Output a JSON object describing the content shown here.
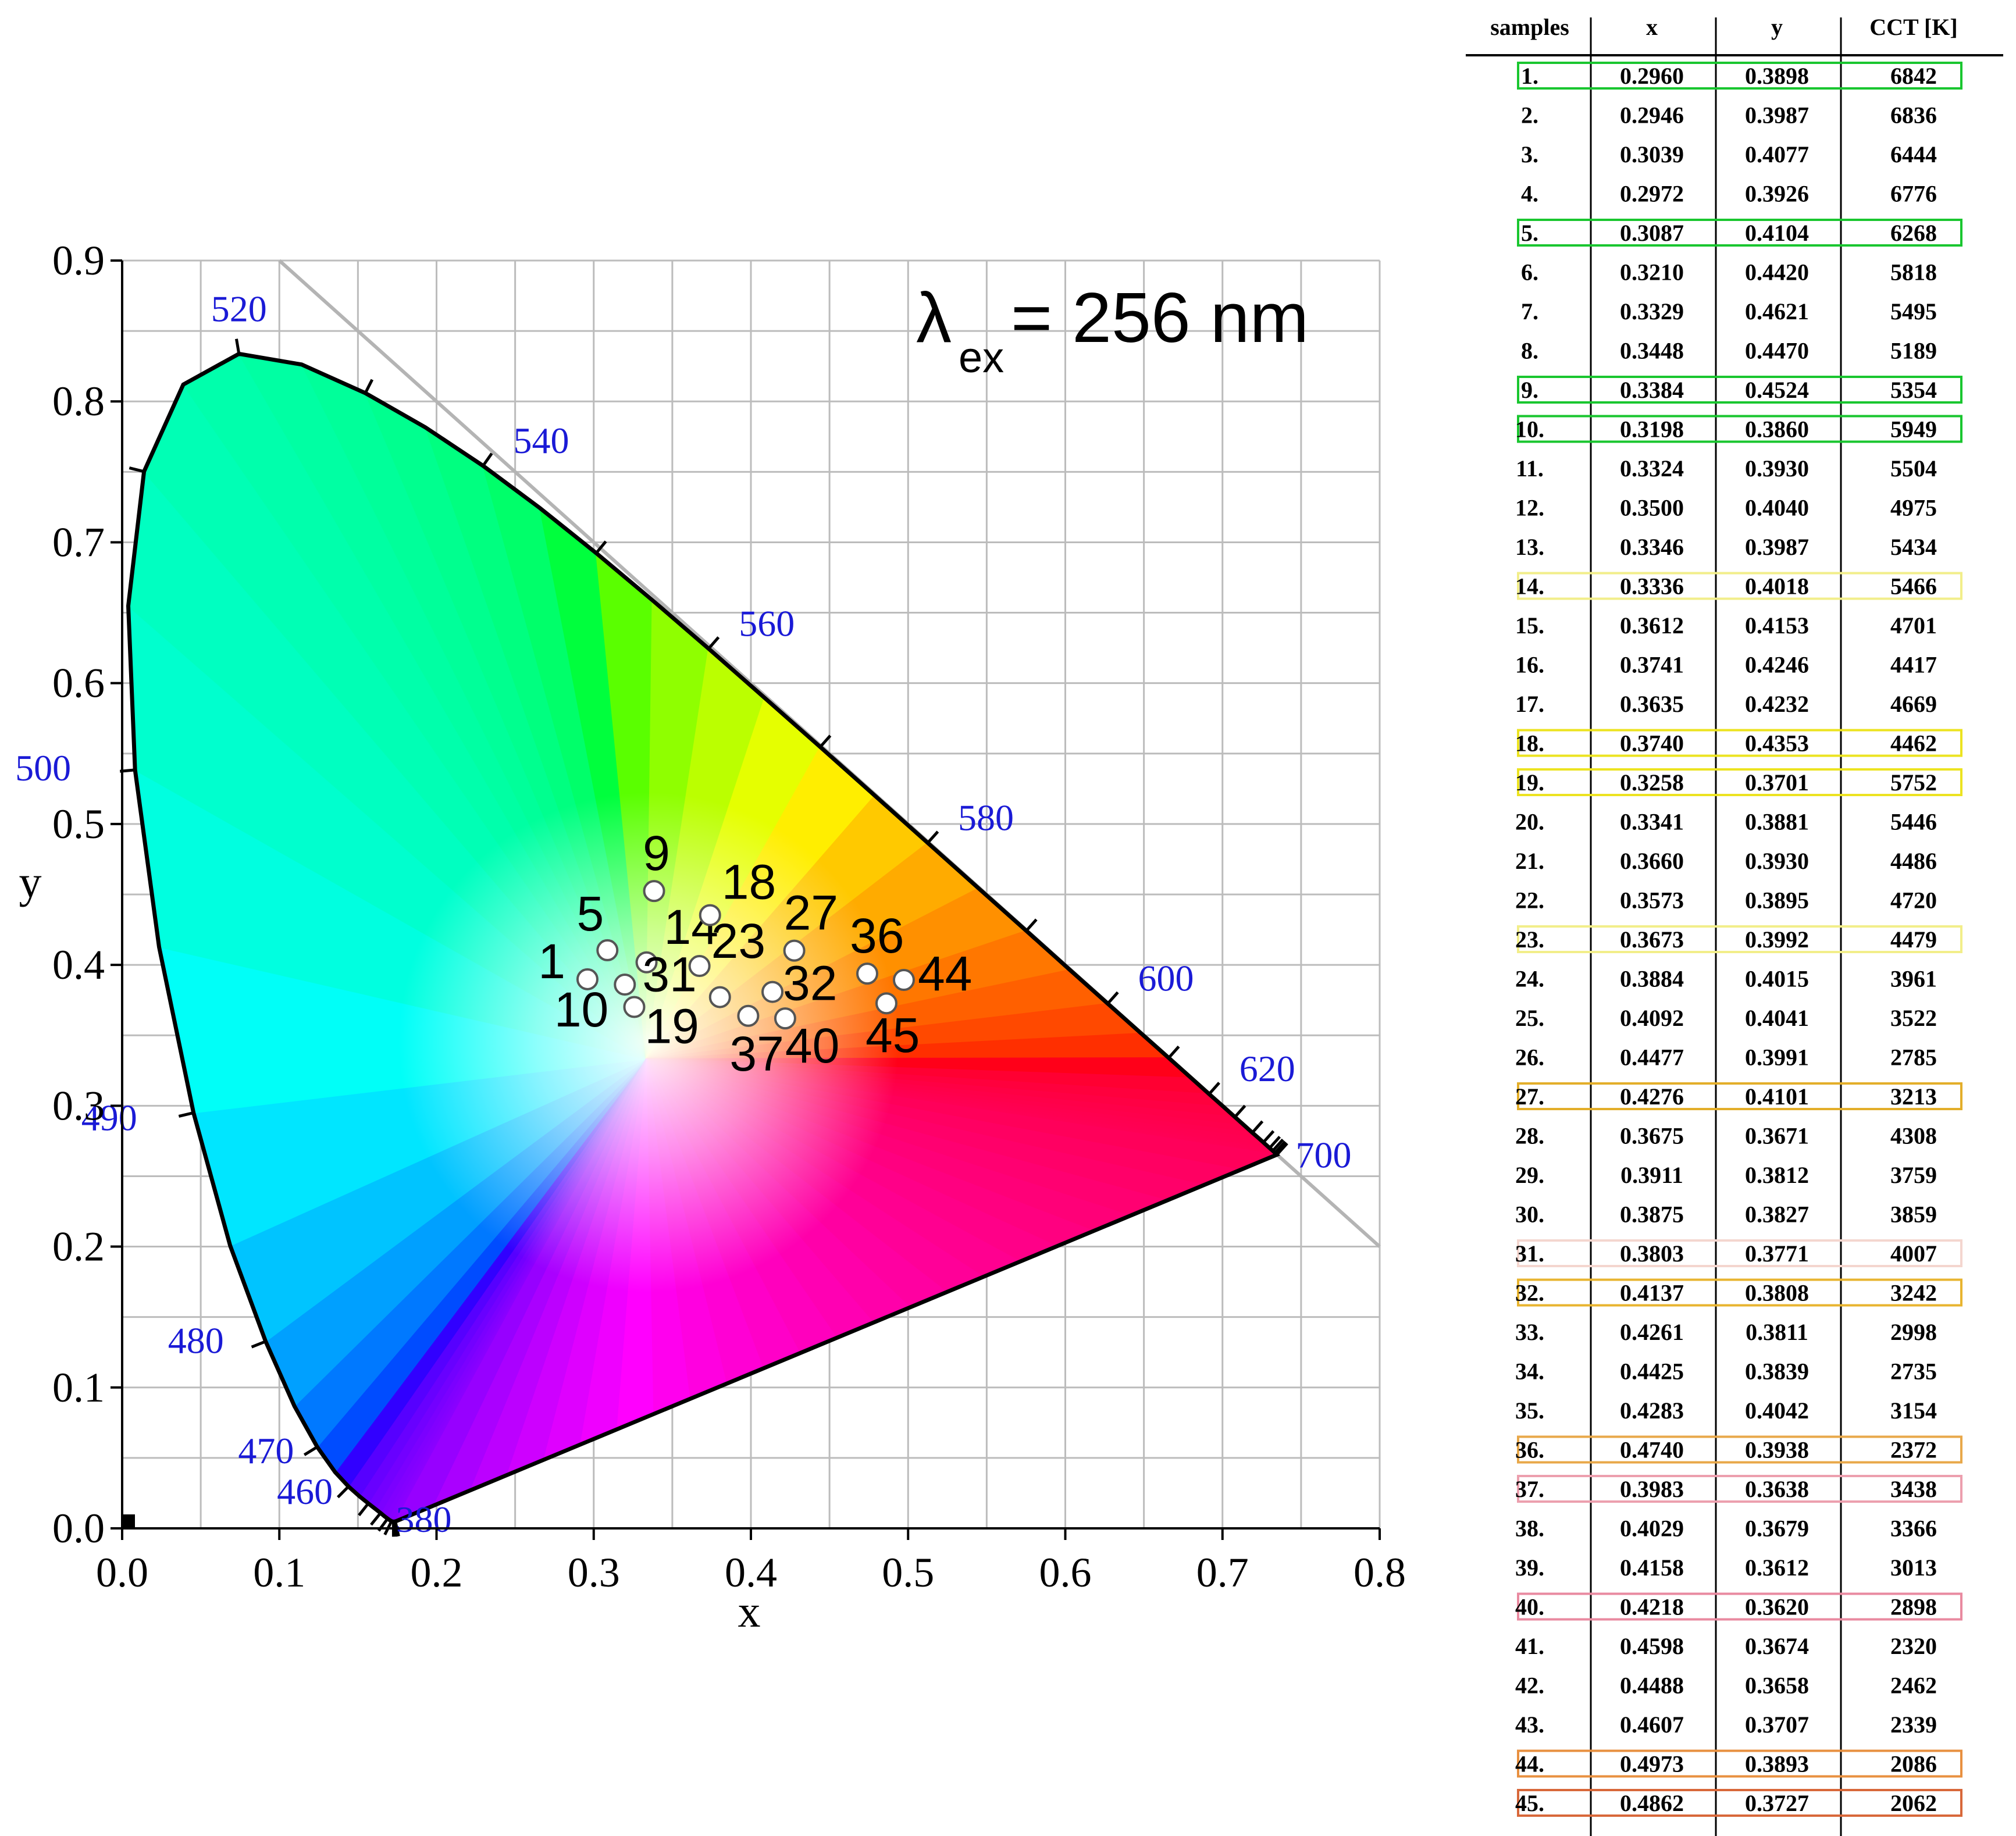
{
  "chart_data": {
    "type": "scatter",
    "xlabel": "x",
    "ylabel": "y",
    "xlim": [
      0.0,
      0.8
    ],
    "ylim": [
      0.0,
      0.9
    ],
    "x_ticks": [
      "0.0",
      "0.1",
      "0.2",
      "0.3",
      "0.4",
      "0.5",
      "0.6",
      "0.7",
      "0.8"
    ],
    "y_ticks": [
      "0.0",
      "0.1",
      "0.2",
      "0.3",
      "0.4",
      "0.5",
      "0.6",
      "0.7",
      "0.8",
      "0.9"
    ],
    "grid": true,
    "annotation": "λex= 256 nm",
    "annotation_main": "λ",
    "annotation_sub": "ex",
    "annotation_rest": "= 256 nm",
    "wavelength_labels": [
      {
        "label": "380",
        "x": 0.1741,
        "y": 0.005
      },
      {
        "label": "460",
        "x": 0.144,
        "y": 0.0297
      },
      {
        "label": "470",
        "x": 0.1241,
        "y": 0.0578
      },
      {
        "label": "480",
        "x": 0.0913,
        "y": 0.1327
      },
      {
        "label": "490",
        "x": 0.0454,
        "y": 0.295
      },
      {
        "label": "500",
        "x": 0.0082,
        "y": 0.5384
      },
      {
        "label": "520",
        "x": 0.0743,
        "y": 0.8338
      },
      {
        "label": "540",
        "x": 0.2296,
        "y": 0.7543
      },
      {
        "label": "560",
        "x": 0.3731,
        "y": 0.6245
      },
      {
        "label": "580",
        "x": 0.5125,
        "y": 0.4866
      },
      {
        "label": "600",
        "x": 0.627,
        "y": 0.3725
      },
      {
        "label": "620",
        "x": 0.6915,
        "y": 0.3083
      },
      {
        "label": "700",
        "x": 0.7347,
        "y": 0.2653
      }
    ],
    "series": [
      {
        "points": [
          {
            "label": "1",
            "x": 0.296,
            "y": 0.3898
          },
          {
            "label": "5",
            "x": 0.3087,
            "y": 0.4104
          },
          {
            "label": "9",
            "x": 0.3384,
            "y": 0.4524
          },
          {
            "label": "10",
            "x": 0.3198,
            "y": 0.386
          },
          {
            "label": "14",
            "x": 0.3336,
            "y": 0.4018
          },
          {
            "label": "18",
            "x": 0.374,
            "y": 0.4353
          },
          {
            "label": "19",
            "x": 0.3258,
            "y": 0.3701
          },
          {
            "label": "23",
            "x": 0.3673,
            "y": 0.3992
          },
          {
            "label": "27",
            "x": 0.4276,
            "y": 0.4101
          },
          {
            "label": "31",
            "x": 0.3803,
            "y": 0.3771
          },
          {
            "label": "32",
            "x": 0.4137,
            "y": 0.3808
          },
          {
            "label": "36",
            "x": 0.474,
            "y": 0.3938
          },
          {
            "label": "37",
            "x": 0.3983,
            "y": 0.3638
          },
          {
            "label": "40",
            "x": 0.4218,
            "y": 0.362
          },
          {
            "label": "44",
            "x": 0.4973,
            "y": 0.3893
          },
          {
            "label": "45",
            "x": 0.4862,
            "y": 0.3727
          }
        ]
      }
    ]
  },
  "table": {
    "headers": [
      "samples",
      "x",
      "y",
      "CCT [K]"
    ],
    "rows": [
      {
        "sample": "1.",
        "x": "0.2960",
        "y": "0.3898",
        "cct": "6842",
        "highlight": "#19c62f"
      },
      {
        "sample": "2.",
        "x": "0.2946",
        "y": "0.3987",
        "cct": "6836",
        "highlight": ""
      },
      {
        "sample": "3.",
        "x": "0.3039",
        "y": "0.4077",
        "cct": "6444",
        "highlight": ""
      },
      {
        "sample": "4.",
        "x": "0.2972",
        "y": "0.3926",
        "cct": "6776",
        "highlight": ""
      },
      {
        "sample": "5.",
        "x": "0.3087",
        "y": "0.4104",
        "cct": "6268",
        "highlight": "#19c62f"
      },
      {
        "sample": "6.",
        "x": "0.3210",
        "y": "0.4420",
        "cct": "5818",
        "highlight": ""
      },
      {
        "sample": "7.",
        "x": "0.3329",
        "y": "0.4621",
        "cct": "5495",
        "highlight": ""
      },
      {
        "sample": "8.",
        "x": "0.3448",
        "y": "0.4470",
        "cct": "5189",
        "highlight": ""
      },
      {
        "sample": "9.",
        "x": "0.3384",
        "y": "0.4524",
        "cct": "5354",
        "highlight": "#19c62f"
      },
      {
        "sample": "10.",
        "x": "0.3198",
        "y": "0.3860",
        "cct": "5949",
        "highlight": "#19c62f"
      },
      {
        "sample": "11.",
        "x": "0.3324",
        "y": "0.3930",
        "cct": "5504",
        "highlight": ""
      },
      {
        "sample": "12.",
        "x": "0.3500",
        "y": "0.4040",
        "cct": "4975",
        "highlight": ""
      },
      {
        "sample": "13.",
        "x": "0.3346",
        "y": "0.3987",
        "cct": "5434",
        "highlight": ""
      },
      {
        "sample": "14.",
        "x": "0.3336",
        "y": "0.4018",
        "cct": "5466",
        "highlight": "#f2ee8a"
      },
      {
        "sample": "15.",
        "x": "0.3612",
        "y": "0.4153",
        "cct": "4701",
        "highlight": ""
      },
      {
        "sample": "16.",
        "x": "0.3741",
        "y": "0.4246",
        "cct": "4417",
        "highlight": ""
      },
      {
        "sample": "17.",
        "x": "0.3635",
        "y": "0.4232",
        "cct": "4669",
        "highlight": ""
      },
      {
        "sample": "18.",
        "x": "0.3740",
        "y": "0.4353",
        "cct": "4462",
        "highlight": "#ece320"
      },
      {
        "sample": "19.",
        "x": "0.3258",
        "y": "0.3701",
        "cct": "5752",
        "highlight": "#ece320"
      },
      {
        "sample": "20.",
        "x": "0.3341",
        "y": "0.3881",
        "cct": "5446",
        "highlight": ""
      },
      {
        "sample": "21.",
        "x": "0.3660",
        "y": "0.3930",
        "cct": "4486",
        "highlight": ""
      },
      {
        "sample": "22.",
        "x": "0.3573",
        "y": "0.3895",
        "cct": "4720",
        "highlight": ""
      },
      {
        "sample": "23.",
        "x": "0.3673",
        "y": "0.3992",
        "cct": "4479",
        "highlight": "#f2ee8a"
      },
      {
        "sample": "24.",
        "x": "0.3884",
        "y": "0.4015",
        "cct": "3961",
        "highlight": ""
      },
      {
        "sample": "25.",
        "x": "0.4092",
        "y": "0.4041",
        "cct": "3522",
        "highlight": ""
      },
      {
        "sample": "26.",
        "x": "0.4477",
        "y": "0.3991",
        "cct": "2785",
        "highlight": ""
      },
      {
        "sample": "27.",
        "x": "0.4276",
        "y": "0.4101",
        "cct": "3213",
        "highlight": "#e3ae2a"
      },
      {
        "sample": "28.",
        "x": "0.3675",
        "y": "0.3671",
        "cct": "4308",
        "highlight": ""
      },
      {
        "sample": "29.",
        "x": "0.3911",
        "y": "0.3812",
        "cct": "3759",
        "highlight": ""
      },
      {
        "sample": "30.",
        "x": "0.3875",
        "y": "0.3827",
        "cct": "3859",
        "highlight": ""
      },
      {
        "sample": "31.",
        "x": "0.3803",
        "y": "0.3771",
        "cct": "4007",
        "highlight": "#f4d6cf"
      },
      {
        "sample": "32.",
        "x": "0.4137",
        "y": "0.3808",
        "cct": "3242",
        "highlight": "#e8b430"
      },
      {
        "sample": "33.",
        "x": "0.4261",
        "y": "0.3811",
        "cct": "2998",
        "highlight": ""
      },
      {
        "sample": "34.",
        "x": "0.4425",
        "y": "0.3839",
        "cct": "2735",
        "highlight": ""
      },
      {
        "sample": "35.",
        "x": "0.4283",
        "y": "0.4042",
        "cct": "3154",
        "highlight": ""
      },
      {
        "sample": "36.",
        "x": "0.4740",
        "y": "0.3938",
        "cct": "2372",
        "highlight": "#e8a84a"
      },
      {
        "sample": "37.",
        "x": "0.3983",
        "y": "0.3638",
        "cct": "3438",
        "highlight": "#ec9fae"
      },
      {
        "sample": "38.",
        "x": "0.4029",
        "y": "0.3679",
        "cct": "3366",
        "highlight": ""
      },
      {
        "sample": "39.",
        "x": "0.4158",
        "y": "0.3612",
        "cct": "3013",
        "highlight": ""
      },
      {
        "sample": "40.",
        "x": "0.4218",
        "y": "0.3620",
        "cct": "2898",
        "highlight": "#e98aa0"
      },
      {
        "sample": "41.",
        "x": "0.4598",
        "y": "0.3674",
        "cct": "2320",
        "highlight": ""
      },
      {
        "sample": "42.",
        "x": "0.4488",
        "y": "0.3658",
        "cct": "2462",
        "highlight": ""
      },
      {
        "sample": "43.",
        "x": "0.4607",
        "y": "0.3707",
        "cct": "2339",
        "highlight": ""
      },
      {
        "sample": "44.",
        "x": "0.4973",
        "y": "0.3893",
        "cct": "2086",
        "highlight": "#e89040"
      },
      {
        "sample": "45.",
        "x": "0.4862",
        "y": "0.3727",
        "cct": "2062",
        "highlight": "#d8683a"
      }
    ]
  }
}
